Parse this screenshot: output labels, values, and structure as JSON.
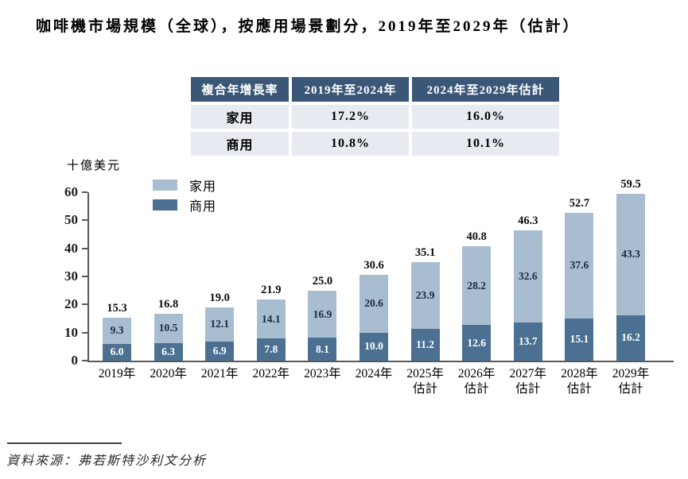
{
  "title": "咖啡機市場規模（全球），按應用場景劃分，2019年至2029年（估計）",
  "cagr_table": {
    "headers": [
      "複合年增長率",
      "2019年至2024年",
      "2024年至2029年估計"
    ],
    "rows": [
      [
        "家用",
        "17.2%",
        "16.0%"
      ],
      [
        "商用",
        "10.8%",
        "10.1%"
      ]
    ]
  },
  "chart_data": {
    "type": "bar",
    "subtype": "stacked",
    "title": "咖啡機市場規模（全球），按應用場景劃分，2019年至2029年（估計）",
    "xlabel": "",
    "ylabel": "十億美元",
    "ylim": [
      0,
      60
    ],
    "yticks": [
      0,
      10,
      20,
      30,
      40,
      50,
      60
    ],
    "grid": false,
    "legend_position": "top-left",
    "categories": [
      "2019年",
      "2020年",
      "2021年",
      "2022年",
      "2023年",
      "2024年",
      "2025年",
      "2026年",
      "2027年",
      "2028年",
      "2029年"
    ],
    "category_sublabels": [
      "",
      "",
      "",
      "",
      "",
      "",
      "估計",
      "估計",
      "估計",
      "估計",
      "估計"
    ],
    "series": [
      {
        "name": "家用",
        "color": "#a9bdd1",
        "values": [
          9.3,
          10.5,
          12.1,
          14.1,
          16.9,
          20.6,
          23.9,
          28.2,
          32.6,
          37.6,
          43.3
        ]
      },
      {
        "name": "商用",
        "color": "#4b7092",
        "values": [
          6.0,
          6.3,
          6.9,
          7.8,
          8.1,
          10.0,
          11.2,
          12.6,
          13.7,
          15.1,
          16.2
        ]
      }
    ],
    "totals": [
      15.3,
      16.8,
      19.0,
      21.9,
      25.0,
      30.6,
      35.1,
      40.8,
      46.3,
      52.7,
      59.5
    ]
  },
  "colors": {
    "table_header_bg": "#3b5777",
    "table_header_text": "#ffffff",
    "table_row_bg": "#e7ebf1",
    "series_home": "#a9bdd1",
    "series_commercial": "#4b7092",
    "axis": "#5a5a5a",
    "inner_label_dark": "#1b2a3e",
    "inner_label_light": "#ffffff"
  },
  "source": "資料來源：弗若斯特沙利文分析"
}
